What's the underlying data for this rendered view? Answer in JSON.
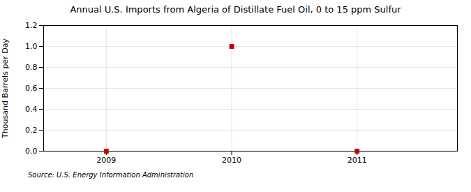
{
  "chart_data": {
    "type": "scatter",
    "title": "Annual U.S. Imports from Algeria of Distillate Fuel Oil, 0 to 15 ppm Sulfur",
    "ylabel": "Thousand Barrels per Day",
    "source": "Source: U.S. Energy Information Administration",
    "x": [
      2009,
      2010,
      2011
    ],
    "values": [
      0.0,
      1.0,
      0.0
    ],
    "color": "#CC0000",
    "marker": "square",
    "xlim": [
      2008.5,
      2011.8
    ],
    "xticks": [
      2009,
      2010,
      2011
    ],
    "ylim": [
      0.0,
      1.2
    ],
    "yticks": [
      {
        "value": 0,
        "label": "0.0"
      },
      0.2,
      0.4,
      0.6,
      0.8,
      {
        "value": 1,
        "label": "1.0"
      },
      1.2
    ],
    "grid": true
  }
}
